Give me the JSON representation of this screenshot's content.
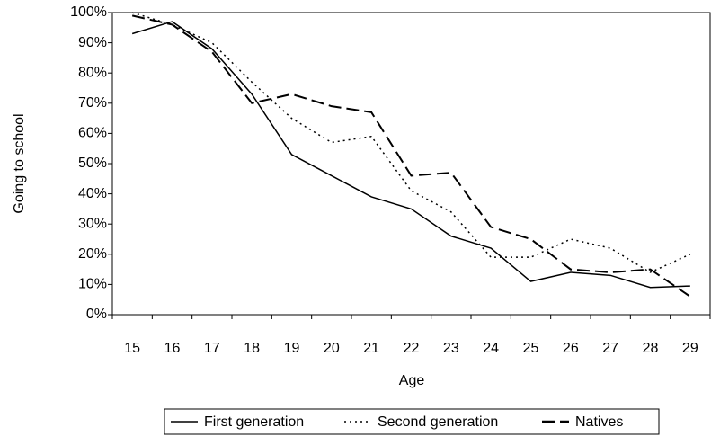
{
  "chart_data": {
    "type": "line",
    "x_label": "Age",
    "y_label": "Going to school",
    "categories": [
      "15",
      "16",
      "17",
      "18",
      "19",
      "20",
      "21",
      "22",
      "23",
      "24",
      "25",
      "26",
      "27",
      "28",
      "29"
    ],
    "series": [
      {
        "name": "First generation",
        "color": "#000000",
        "dash": "solid",
        "values": [
          93,
          97,
          88,
          73,
          53,
          46,
          39,
          35,
          26,
          22,
          11,
          14,
          13,
          9,
          9.5
        ]
      },
      {
        "name": "Second generation",
        "color": "#000000",
        "dash": "dotted",
        "values": [
          100,
          96,
          90,
          77,
          65,
          57,
          59,
          41,
          34,
          19,
          19,
          25,
          22,
          14,
          20
        ]
      },
      {
        "name": "Natives",
        "color": "#000000",
        "dash": "dashed",
        "values": [
          99,
          96,
          87,
          70,
          73,
          69,
          67,
          46,
          47,
          29,
          25,
          15,
          14,
          15,
          6
        ]
      }
    ],
    "ylim": [
      0,
      100
    ],
    "yticks": [
      {
        "value": 0,
        "label": "0%"
      },
      {
        "value": 10,
        "label": "10%"
      },
      {
        "value": 20,
        "label": "20%"
      },
      {
        "value": 30,
        "label": "30%"
      },
      {
        "value": 40,
        "label": "40%"
      },
      {
        "value": 50,
        "label": "50%"
      },
      {
        "value": 60,
        "label": "60%"
      },
      {
        "value": 70,
        "label": "70%"
      },
      {
        "value": 80,
        "label": "80%"
      },
      {
        "value": 90,
        "label": "90%"
      },
      {
        "value": 100,
        "label": "100%"
      }
    ],
    "legend": "bottom"
  }
}
